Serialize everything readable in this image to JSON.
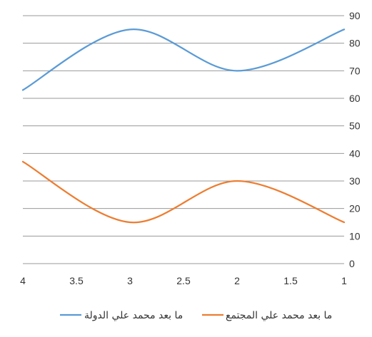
{
  "chart_data": {
    "type": "line",
    "x_axis": {
      "reversed": true,
      "range": [
        1,
        4
      ],
      "ticks": [
        4,
        3.5,
        3,
        2.5,
        2,
        1.5,
        1
      ],
      "tick_labels": [
        "4",
        "3.5",
        "3",
        "2.5",
        "2",
        "1.5",
        "1"
      ]
    },
    "y_axis": {
      "position": "right",
      "range": [
        0,
        90
      ],
      "ticks": [
        0,
        10,
        20,
        30,
        40,
        50,
        60,
        70,
        80,
        90
      ],
      "tick_labels": [
        "0",
        "10",
        "20",
        "30",
        "40",
        "50",
        "60",
        "70",
        "80",
        "90"
      ]
    },
    "grid": true,
    "smooth": true,
    "legend_position": "bottom",
    "series": [
      {
        "name": "ما بعد محمد علي الدولة",
        "color": "#5b9bd5",
        "x": [
          4,
          3,
          2,
          1
        ],
        "values": [
          63,
          85,
          70,
          85
        ]
      },
      {
        "name": "ما بعد محمد علي المجتمع",
        "color": "#ed7d31",
        "x": [
          4,
          3,
          2,
          1
        ],
        "values": [
          37,
          15,
          30,
          15
        ]
      }
    ]
  }
}
